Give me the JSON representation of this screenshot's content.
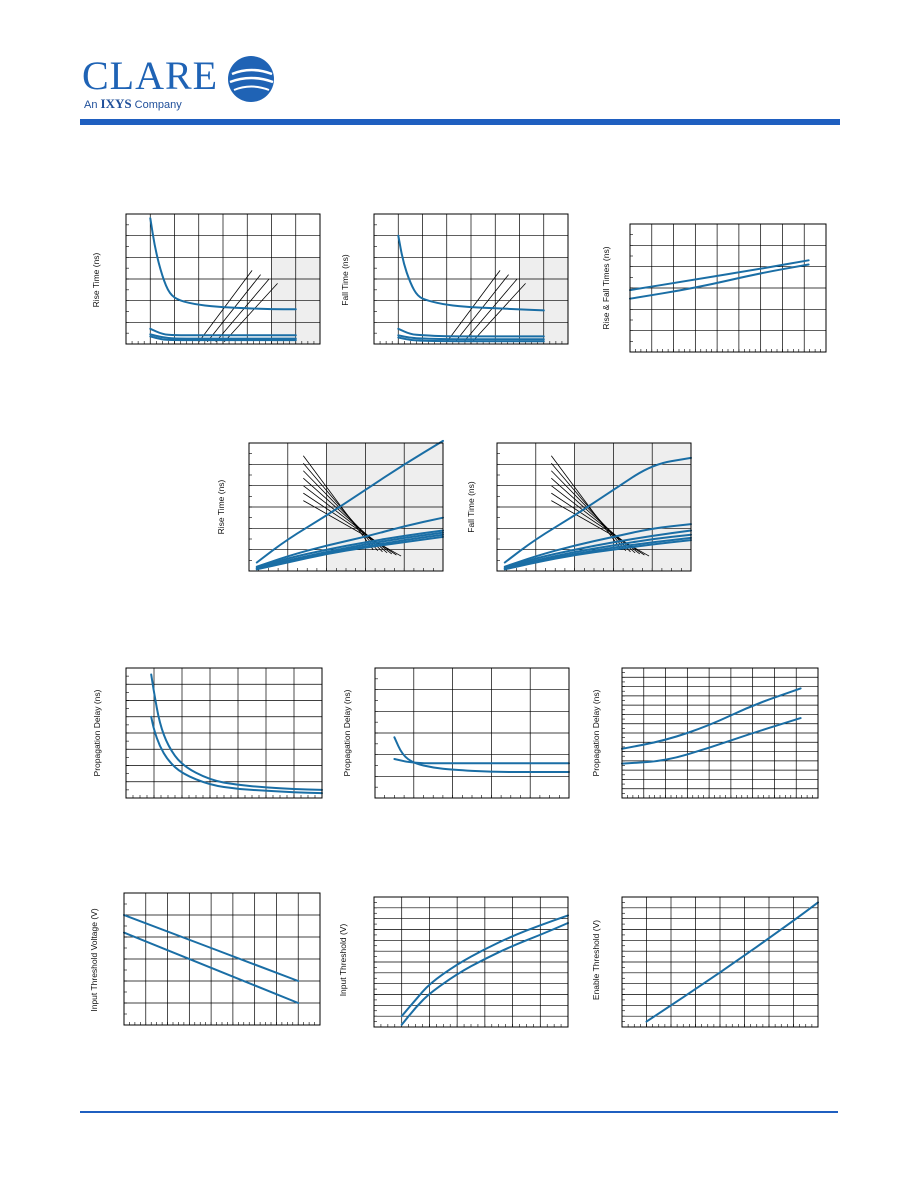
{
  "header": {
    "logo_word": "CLARE",
    "logo_sub_prefix": "An",
    "logo_sub_brand": "IXYS",
    "logo_sub_suffix": "Company"
  },
  "colors": {
    "brand": "#1f5fc0",
    "curve": "#1a6ea5",
    "grid": "#000000",
    "plot_bg": "#eeeeee"
  },
  "charts": [
    {
      "id": "c1",
      "y_label": "Rise Time (ns)",
      "chart_data": {
        "type": "line",
        "xlim": [
          0,
          8
        ],
        "ylim": [
          0,
          6
        ],
        "x_grid": 8,
        "y_grid": 6,
        "grid": true,
        "series": [
          {
            "x": [
              1.0,
              1.2,
              1.5,
              1.8,
              2.2,
              3,
              4,
              5,
              6,
              7
            ],
            "y": [
              5.8,
              4.4,
              3.1,
              2.3,
              2.0,
              1.8,
              1.7,
              1.65,
              1.6,
              1.6
            ]
          },
          {
            "x": [
              1.0,
              1.5,
              2,
              3,
              4,
              5,
              6,
              7
            ],
            "y": [
              0.7,
              0.45,
              0.4,
              0.4,
              0.4,
              0.4,
              0.4,
              0.4
            ]
          },
          {
            "x": [
              1.0,
              1.5,
              2,
              3,
              4,
              5,
              6,
              7
            ],
            "y": [
              0.45,
              0.3,
              0.25,
              0.25,
              0.25,
              0.25,
              0.25,
              0.25
            ]
          },
          {
            "x": [
              1.0,
              1.5,
              2,
              3,
              4,
              5,
              6,
              7
            ],
            "y": [
              0.35,
              0.2,
              0.18,
              0.18,
              0.18,
              0.18,
              0.18,
              0.18
            ]
          }
        ]
      }
    },
    {
      "id": "c2",
      "y_label": "Fall Time (ns)",
      "chart_data": {
        "type": "line",
        "xlim": [
          0,
          8
        ],
        "ylim": [
          0,
          6
        ],
        "x_grid": 8,
        "y_grid": 6,
        "grid": true,
        "series": [
          {
            "x": [
              1.0,
              1.2,
              1.5,
              1.8,
              2.2,
              3,
              4,
              5,
              6,
              7
            ],
            "y": [
              5.0,
              3.8,
              2.8,
              2.2,
              2.0,
              1.8,
              1.7,
              1.65,
              1.6,
              1.55
            ]
          },
          {
            "x": [
              1.0,
              1.5,
              2,
              3,
              4,
              5,
              6,
              7
            ],
            "y": [
              0.7,
              0.45,
              0.4,
              0.35,
              0.35,
              0.35,
              0.35,
              0.35
            ]
          },
          {
            "x": [
              1.0,
              1.5,
              2,
              3,
              4,
              5,
              6,
              7
            ],
            "y": [
              0.4,
              0.28,
              0.25,
              0.22,
              0.22,
              0.22,
              0.22,
              0.22
            ]
          },
          {
            "x": [
              1.0,
              1.5,
              2,
              3,
              4,
              5,
              6,
              7
            ],
            "y": [
              0.3,
              0.18,
              0.15,
              0.13,
              0.13,
              0.13,
              0.13,
              0.13
            ]
          }
        ]
      }
    },
    {
      "id": "c3",
      "y_label": "Rise & Fall Times (ns)",
      "chart_data": {
        "type": "line",
        "xlim": [
          0,
          9
        ],
        "ylim": [
          0,
          6
        ],
        "x_grid": 9,
        "y_grid": 6,
        "grid": true,
        "series": [
          {
            "x": [
              0,
              3,
              6,
              8.2
            ],
            "y": [
              2.9,
              3.4,
              3.9,
              4.3
            ]
          },
          {
            "x": [
              0,
              3,
              6,
              8.2
            ],
            "y": [
              2.5,
              3.0,
              3.7,
              4.1
            ]
          }
        ]
      }
    },
    {
      "id": "c4",
      "y_label": "Rise Time (ns)",
      "chart_data": {
        "type": "line",
        "xlim": [
          0,
          5
        ],
        "ylim": [
          0,
          6
        ],
        "x_grid": 5,
        "y_grid": 6,
        "grid": true,
        "series": [
          {
            "x": [
              0.2,
              1,
              2,
              3,
              4,
              5
            ],
            "y": [
              0.4,
              1.5,
              2.6,
              3.8,
              5.0,
              6.1
            ]
          },
          {
            "x": [
              0.2,
              1,
              2,
              3,
              4,
              5
            ],
            "y": [
              0.2,
              0.7,
              1.2,
              1.6,
              2.1,
              2.5
            ]
          },
          {
            "x": [
              0.2,
              1,
              2,
              3,
              4,
              5
            ],
            "y": [
              0.15,
              0.6,
              1.0,
              1.35,
              1.65,
              1.9
            ]
          },
          {
            "x": [
              0.2,
              1,
              2,
              3,
              4,
              5
            ],
            "y": [
              0.12,
              0.5,
              0.9,
              1.25,
              1.55,
              1.8
            ]
          },
          {
            "x": [
              0.2,
              1,
              2,
              3,
              4,
              5
            ],
            "y": [
              0.1,
              0.45,
              0.85,
              1.15,
              1.45,
              1.7
            ]
          },
          {
            "x": [
              0.2,
              1,
              2,
              3,
              4,
              5
            ],
            "y": [
              0.08,
              0.4,
              0.8,
              1.1,
              1.35,
              1.6
            ]
          }
        ]
      }
    },
    {
      "id": "c5",
      "y_label": "Fall Time (ns)",
      "chart_data": {
        "type": "line",
        "xlim": [
          0,
          5
        ],
        "ylim": [
          0,
          6
        ],
        "x_grid": 5,
        "y_grid": 6,
        "grid": true,
        "series": [
          {
            "x": [
              0.2,
              1,
              2,
              3,
              4,
              5
            ],
            "y": [
              0.4,
              1.5,
              2.6,
              3.8,
              5.0,
              5.3
            ]
          },
          {
            "x": [
              0.2,
              1,
              2,
              3,
              4,
              5
            ],
            "y": [
              0.2,
              0.7,
              1.2,
              1.6,
              2.0,
              2.2
            ]
          },
          {
            "x": [
              0.2,
              1,
              2,
              3,
              4,
              5
            ],
            "y": [
              0.15,
              0.6,
              1.0,
              1.35,
              1.65,
              1.9
            ]
          },
          {
            "x": [
              0.2,
              1,
              2,
              3,
              4,
              5
            ],
            "y": [
              0.12,
              0.5,
              0.9,
              1.2,
              1.5,
              1.7
            ]
          },
          {
            "x": [
              0.2,
              1,
              2,
              3,
              4,
              5
            ],
            "y": [
              0.1,
              0.45,
              0.8,
              1.1,
              1.35,
              1.55
            ]
          },
          {
            "x": [
              0.2,
              1,
              2,
              3,
              4,
              5
            ],
            "y": [
              0.08,
              0.4,
              0.75,
              1.0,
              1.25,
              1.45
            ]
          }
        ]
      }
    },
    {
      "id": "c6",
      "y_label": "Propagation Delay (ns)",
      "chart_data": {
        "type": "line",
        "xlim": [
          0,
          7
        ],
        "ylim": [
          0,
          8
        ],
        "x_grid": 7,
        "y_grid": 8,
        "grid": true,
        "series": [
          {
            "x": [
              0.9,
              1.0,
              1.2,
              1.5,
              2,
              3,
              4,
              5,
              6,
              7
            ],
            "y": [
              7.6,
              6.5,
              4.6,
              3.2,
              2.0,
              1.1,
              0.8,
              0.65,
              0.55,
              0.5
            ]
          },
          {
            "x": [
              0.9,
              1.0,
              1.2,
              1.5,
              2,
              3,
              4,
              5,
              6,
              7
            ],
            "y": [
              5.0,
              4.2,
              3.2,
              2.3,
              1.5,
              0.8,
              0.55,
              0.45,
              0.35,
              0.3
            ]
          }
        ]
      }
    },
    {
      "id": "c7",
      "y_label": "Propagation Delay (ns)",
      "chart_data": {
        "type": "line",
        "xlim": [
          0,
          5
        ],
        "ylim": [
          0,
          6
        ],
        "x_grid": 5,
        "y_grid": 6,
        "grid": true,
        "series": [
          {
            "x": [
              0.5,
              0.7,
              1,
              1.5,
              2,
              3,
              4,
              5
            ],
            "y": [
              2.8,
              2.0,
              1.6,
              1.4,
              1.3,
              1.2,
              1.2,
              1.2
            ]
          },
          {
            "x": [
              0.5,
              1,
              2,
              3,
              4,
              5
            ],
            "y": [
              1.8,
              1.6,
              1.6,
              1.6,
              1.6,
              1.6
            ]
          }
        ]
      }
    },
    {
      "id": "c8",
      "y_label": "Propagation Delay (ns)",
      "chart_data": {
        "type": "line",
        "xlim": [
          0,
          9
        ],
        "ylim": [
          0,
          14
        ],
        "x_grid": 9,
        "y_grid": 14,
        "grid": true,
        "series": [
          {
            "x": [
              0,
              2,
              4,
              6,
              8.2
            ],
            "y": [
              5.3,
              6.2,
              7.8,
              10.0,
              11.8
            ]
          },
          {
            "x": [
              0,
              2,
              4,
              6,
              8.2
            ],
            "y": [
              3.7,
              4.0,
              5.4,
              7.0,
              8.6
            ]
          }
        ]
      }
    },
    {
      "id": "c9",
      "y_label": "Input Threshold Voltage (V)",
      "chart_data": {
        "type": "line",
        "xlim": [
          0,
          9
        ],
        "ylim": [
          0,
          6
        ],
        "x_grid": 9,
        "y_grid": 6,
        "grid": true,
        "series": [
          {
            "x": [
              0,
              8
            ],
            "y": [
              5.0,
              2.0
            ]
          },
          {
            "x": [
              0,
              8
            ],
            "y": [
              4.2,
              1.0
            ]
          }
        ]
      }
    },
    {
      "id": "c10",
      "y_label": "Input Threshold (V)",
      "chart_data": {
        "type": "line",
        "xlim": [
          0,
          7
        ],
        "ylim": [
          0,
          12
        ],
        "x_grid": 7,
        "y_grid": 12,
        "grid": true,
        "series": [
          {
            "x": [
              1.0,
              1.5,
              2,
              3,
              4,
              5,
              6,
              7
            ],
            "y": [
              1.0,
              2.5,
              4.0,
              5.8,
              7.2,
              8.4,
              9.4,
              10.3
            ]
          },
          {
            "x": [
              1.0,
              1.5,
              2,
              3,
              4,
              5,
              6,
              7
            ],
            "y": [
              0.2,
              1.8,
              3.1,
              4.9,
              6.3,
              7.5,
              8.5,
              9.6
            ]
          }
        ]
      }
    },
    {
      "id": "c11",
      "y_label": "Enable Threshold (V)",
      "chart_data": {
        "type": "line",
        "xlim": [
          0,
          8
        ],
        "ylim": [
          0,
          12
        ],
        "x_grid": 8,
        "y_grid": 12,
        "grid": true,
        "series": [
          {
            "x": [
              1.0,
              4,
              7,
              8
            ],
            "y": [
              0.5,
              5.0,
              9.8,
              11.5
            ]
          }
        ]
      }
    }
  ]
}
